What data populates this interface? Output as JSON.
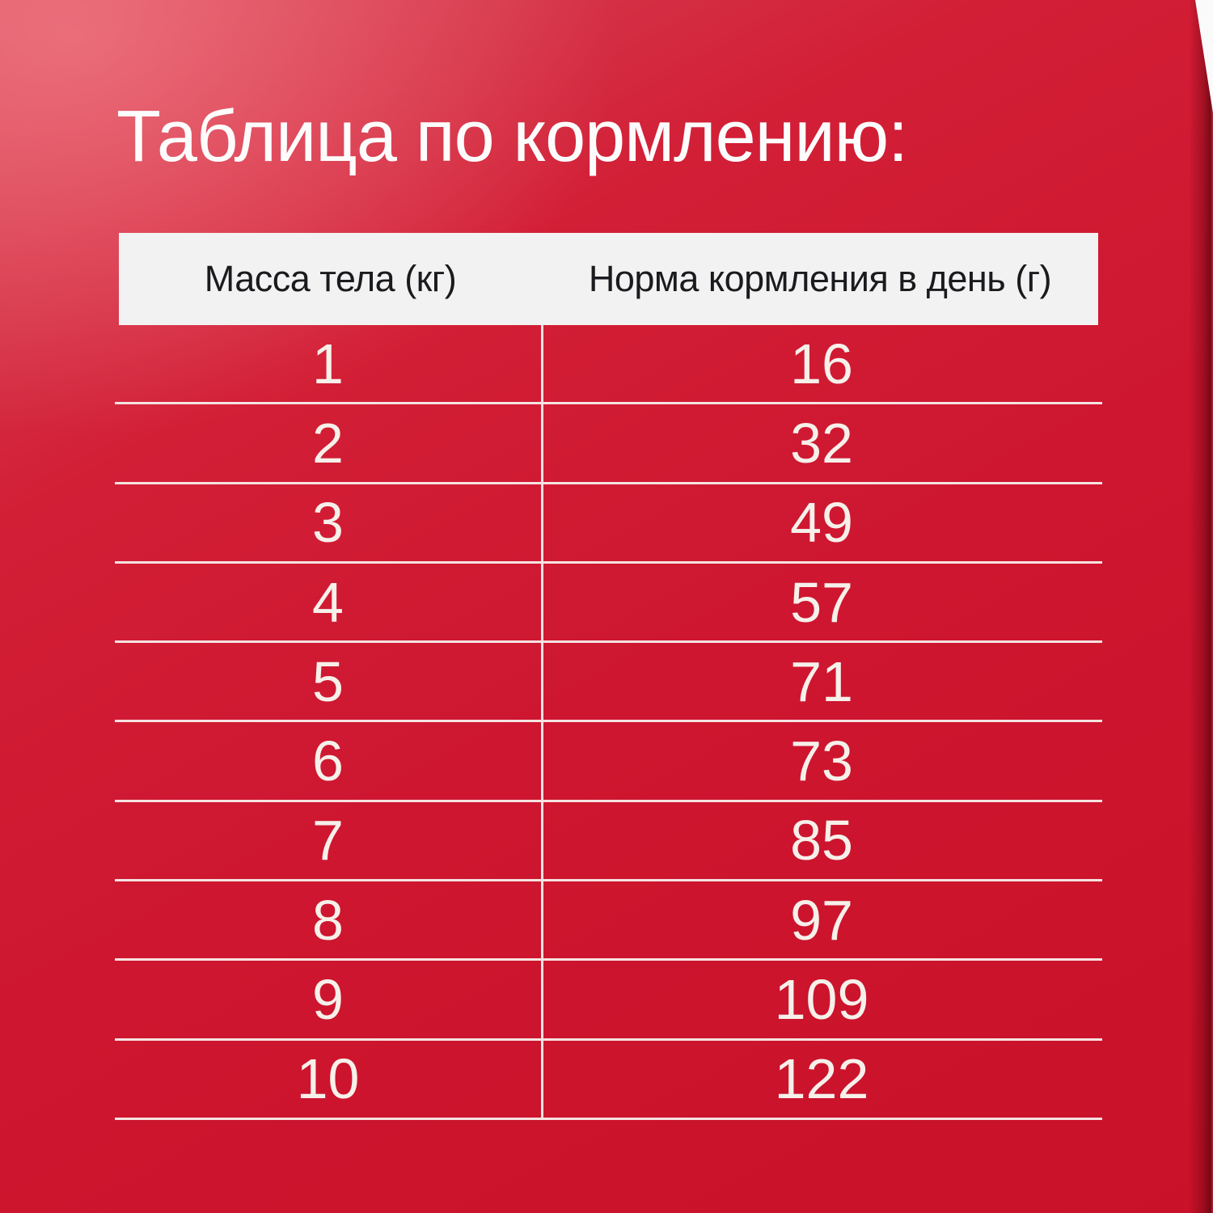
{
  "page": {
    "title": "Таблица по кормлению:"
  },
  "colors": {
    "background_red": "#ce1630",
    "background_light_red": "#d84b5c",
    "edge_dark_red": "#8a030c",
    "header_bg": "#f3f2f2",
    "header_text": "#1a1b1e",
    "cell_text": "#f6f0ea",
    "divider": "#f5e2e1"
  },
  "chart_data": {
    "type": "table",
    "title": "Таблица по кормлению:",
    "columns": [
      "Масса тела (кг)",
      "Норма кормления в день (г)"
    ],
    "rows": [
      [
        1,
        16
      ],
      [
        2,
        32
      ],
      [
        3,
        49
      ],
      [
        4,
        57
      ],
      [
        5,
        71
      ],
      [
        6,
        73
      ],
      [
        7,
        85
      ],
      [
        8,
        97
      ],
      [
        9,
        109
      ],
      [
        10,
        122
      ]
    ]
  },
  "table": {
    "header": {
      "col1": "Масса тела (кг)",
      "col2": "Норма кормления в день (г)"
    },
    "rows": [
      {
        "weight": "1",
        "amount": "16"
      },
      {
        "weight": "2",
        "amount": "32"
      },
      {
        "weight": "3",
        "amount": "49"
      },
      {
        "weight": "4",
        "amount": "57"
      },
      {
        "weight": "5",
        "amount": "71"
      },
      {
        "weight": "6",
        "amount": "73"
      },
      {
        "weight": "7",
        "amount": "85"
      },
      {
        "weight": "8",
        "amount": "97"
      },
      {
        "weight": "9",
        "amount": "109"
      },
      {
        "weight": "10",
        "amount": "122"
      }
    ]
  }
}
